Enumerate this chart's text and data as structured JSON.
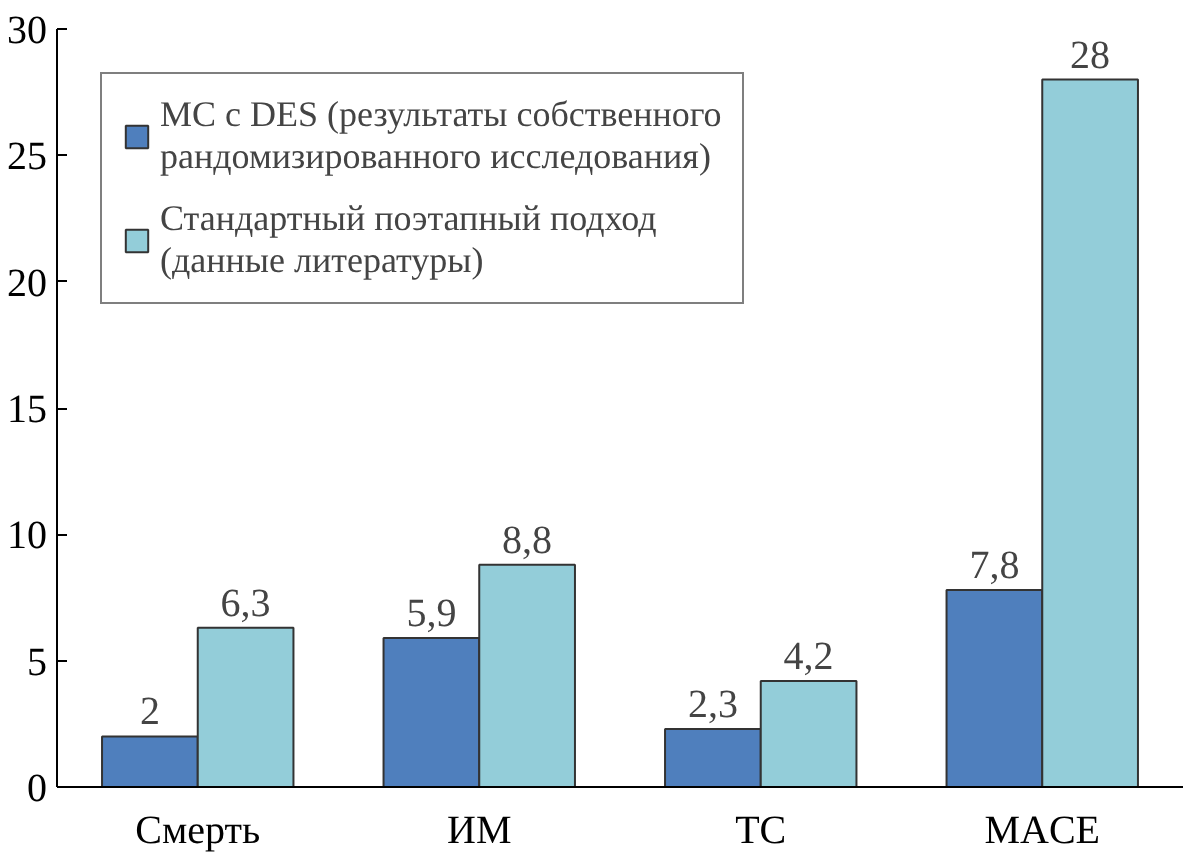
{
  "chart_data": {
    "type": "bar",
    "categories": [
      "Смерть",
      "ИМ",
      "ТС",
      "MACE"
    ],
    "series": [
      {
        "name": "МС с DES (результаты собственного рандомизированного исследования)",
        "color": "#4f7fbd",
        "values": [
          2,
          5.9,
          2.3,
          7.8
        ],
        "value_labels": [
          "2",
          "5,9",
          "2,3",
          "7,8"
        ]
      },
      {
        "name": "Стандартный поэтапный подход (данные литературы)",
        "color": "#93cdd9",
        "values": [
          6.3,
          8.8,
          4.2,
          28
        ],
        "value_labels": [
          "6,3",
          "8,8",
          "4,2",
          "28"
        ]
      }
    ],
    "ylim": [
      0,
      30
    ],
    "yticks": [
      0,
      5,
      10,
      15,
      20,
      25,
      30
    ],
    "grid": false,
    "legend": "top left"
  }
}
